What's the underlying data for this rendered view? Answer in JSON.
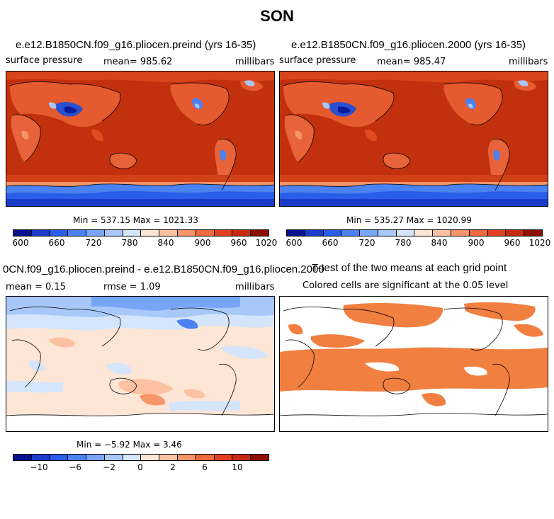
{
  "suptitle": "SON",
  "panels": {
    "top_left": {
      "title": "e.e12.B1850CN.f09_g16.pliocen.preind (yrs 16-35)",
      "variable": "surface pressure",
      "mean": "mean= 985.62",
      "units": "millibars",
      "minmax": "Min = 537.15 Max = 1021.33"
    },
    "top_right": {
      "title": "e.e12.B1850CN.f09_g16.pliocen.2000 (yrs 16-35)",
      "variable": "surface pressure",
      "mean": "mean= 985.47",
      "units": "millibars",
      "minmax": "Min = 535.27 Max = 1020.99"
    },
    "bottom_left": {
      "title": "0CN.f09_g16.pliocen.preind - e.e12.B1850CN.f09_g16.pliocen.2000",
      "mean": "mean =   0.15",
      "rmse": "rmse =   1.09",
      "units": "millibars",
      "minmax": "Min = −5.92 Max =   3.46"
    },
    "bottom_right": {
      "title": "T-test of the two means at each grid point",
      "subtitle": "Colored cells are significant at the 0.05 level"
    }
  },
  "colorbar_abs": {
    "colors": [
      "#08128f",
      "#1a3cc9",
      "#2a5ee8",
      "#4b82f2",
      "#78a6f7",
      "#a8c8fa",
      "#d5e5fb",
      "#fde6d6",
      "#fbc1a1",
      "#f6956a",
      "#ef6a3c",
      "#e34020",
      "#c62a10",
      "#8f0e04"
    ],
    "ticks": [
      "600",
      "660",
      "720",
      "780",
      "840",
      "900",
      "960",
      "1020"
    ]
  },
  "colorbar_diff": {
    "colors": [
      "#08128f",
      "#1a3cc9",
      "#2a5ee8",
      "#4b82f2",
      "#78a6f7",
      "#a8c8fa",
      "#d5e5fb",
      "#fde6d6",
      "#fbc1a1",
      "#f6956a",
      "#ef6a3c",
      "#e34020",
      "#c62a10",
      "#8f0e04"
    ],
    "ticks": [
      "−10",
      "−6",
      "−2",
      "0",
      "2",
      "6",
      "10"
    ]
  },
  "colors": {
    "ocean_abs": "#c3300d",
    "ttest_fill": "#f07f40"
  }
}
